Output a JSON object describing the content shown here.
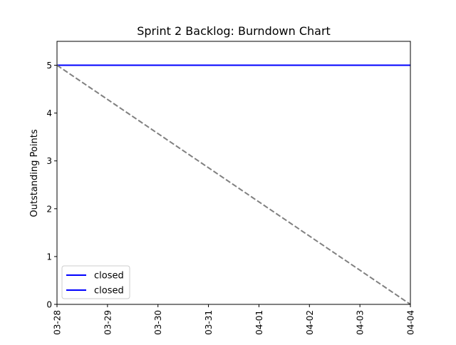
{
  "chart_data": {
    "type": "line",
    "title": "Sprint 2 Backlog: Burndown Chart",
    "xlabel": "",
    "ylabel": "Outstanding Points",
    "x_categories": [
      "03-28",
      "03-29",
      "03-30",
      "03-31",
      "04-01",
      "04-02",
      "04-03",
      "04-04"
    ],
    "ylim": [
      0,
      5.5
    ],
    "yticks": [
      0,
      1,
      2,
      3,
      4,
      5
    ],
    "grid": false,
    "legend_location": "lower-left",
    "series": [
      {
        "label": "closed",
        "color": "#0000ff",
        "style": "solid",
        "x": [
          "03-28",
          "04-04"
        ],
        "y": [
          5,
          5
        ]
      },
      {
        "label": "closed",
        "color": "#0000ff",
        "style": "solid",
        "x": [
          "03-28",
          "04-04"
        ],
        "y": [
          5,
          5
        ]
      },
      {
        "label": "",
        "color": "#808080",
        "style": "dashed",
        "x": [
          "03-28",
          "04-04"
        ],
        "y": [
          5,
          0
        ]
      }
    ],
    "legend_entries": [
      {
        "label": "closed",
        "color": "#0000ff"
      },
      {
        "label": "closed",
        "color": "#0000ff"
      }
    ]
  }
}
